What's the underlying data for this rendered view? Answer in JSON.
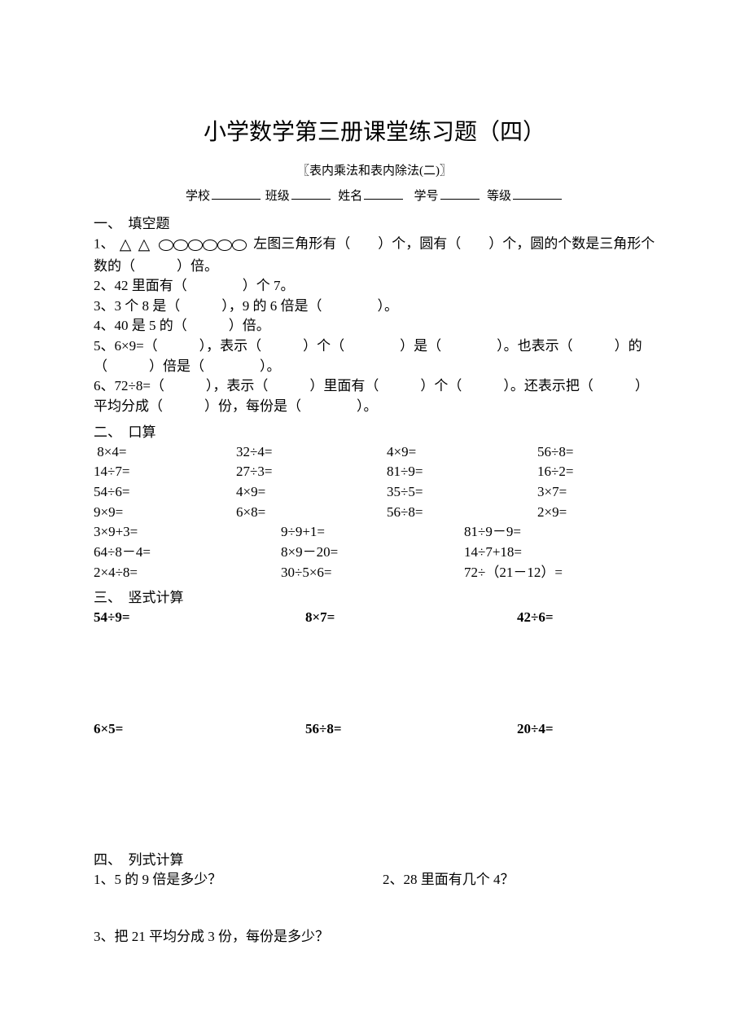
{
  "title": "小学数学第三册课堂练习题（四）",
  "subtitle": "〖表内乘法和表内除法(二)〗",
  "info": {
    "school_label": "学校",
    "class_label": "班级",
    "name_label": "姓名",
    "number_label": "学号",
    "grade_label": "等级"
  },
  "sections": {
    "s1": {
      "title": "一、　填空题",
      "q1a": "1、",
      "q1b": "左图三角形有（　　）个，圆有（　　）个，圆的个数是三角形个数的（　　　）倍。",
      "q2": "2、42 里面有（　　　　）个 7。",
      "q3": "3、3 个 8 是（　　　），9 的 6 倍是（　　　　）。",
      "q4": "4、40 是 5 的（　　　）倍。",
      "q5": "5、6×9=（　　　），表示（　　　）个（　　　　）是（　　　　）。也表示（　　　）的（　　　）倍是（　　　　）。",
      "q6": "6、72÷8=（　　　），表示（　　　）里面有（　　　）个（　　　）。还表示把（　　　）平均分成（　　　）份，每份是（　　　　）。"
    },
    "s2": {
      "title": "二、　口算",
      "row1": [
        " 8×4=",
        "32÷4=",
        "4×9=",
        "56÷8="
      ],
      "row2": [
        "14÷7=",
        "27÷3=",
        "81÷9=",
        "16÷2="
      ],
      "row3": [
        "54÷6=",
        "4×9=",
        "35÷5=",
        "3×7="
      ],
      "row4": [
        "9×9=",
        "6×8=",
        "56÷8=",
        "2×9="
      ],
      "row5": [
        "3×9+3=",
        "9÷9+1=",
        "81÷9－9="
      ],
      "row6": [
        "64÷8－4=",
        "8×9－20=",
        "14÷7+18="
      ],
      "row7": [
        "2×4÷8=",
        "30÷5×6=",
        "72÷（21－12）="
      ]
    },
    "s3": {
      "title": "三、　竖式计算",
      "row1": [
        "54÷9=",
        "8×7=",
        "42÷6="
      ],
      "row2": [
        "6×5=",
        "56÷8=",
        "20÷4="
      ]
    },
    "s4": {
      "title": "四、　列式计算",
      "q1": "1、5 的 9 倍是多少？",
      "q2": "2、28 里面有几个 4？",
      "q3": "3、把 21 平均分成 3 份，每份是多少？"
    }
  }
}
